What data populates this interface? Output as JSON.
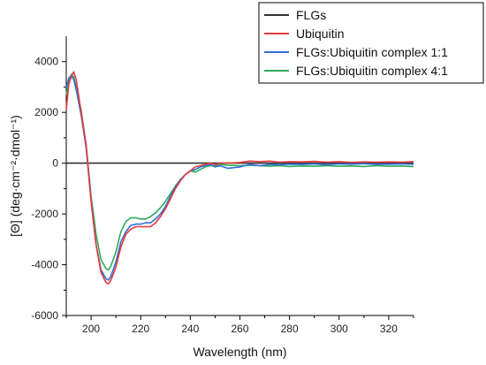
{
  "chart_data": {
    "type": "line",
    "title": "",
    "xlabel": "Wavelength (nm)",
    "ylabel": "[Θ] (deg·cm⁻²·dmol⁻¹)",
    "xlim": [
      190,
      330
    ],
    "ylim": [
      -6000,
      5000
    ],
    "xticks": [
      200,
      220,
      240,
      260,
      280,
      300,
      320
    ],
    "yticks": [
      -6000,
      -4000,
      -2000,
      0,
      2000,
      4000
    ],
    "grid": false,
    "legend_position": "top-right",
    "series": [
      {
        "name": "FLGs",
        "color": "#333333",
        "x": [
          190,
          330
        ],
        "y": [
          0,
          0
        ]
      },
      {
        "name": "Ubiquitin",
        "color": "#e8383d",
        "x": [
          190,
          191,
          192,
          193,
          194,
          196,
          198,
          200,
          202,
          204,
          206,
          207,
          208,
          210,
          212,
          214,
          216,
          218,
          220,
          222,
          224,
          226,
          228,
          230,
          232,
          234,
          236,
          238,
          240,
          242,
          244,
          246,
          248,
          250,
          252,
          255,
          260,
          264,
          268,
          272,
          276,
          280,
          285,
          290,
          295,
          300,
          305,
          310,
          315,
          320,
          325,
          330
        ],
        "y": [
          2100,
          3100,
          3400,
          3600,
          3300,
          2000,
          700,
          -1500,
          -3200,
          -4300,
          -4700,
          -4750,
          -4600,
          -4100,
          -3300,
          -2800,
          -2600,
          -2500,
          -2500,
          -2500,
          -2500,
          -2350,
          -2100,
          -1800,
          -1400,
          -1000,
          -700,
          -450,
          -300,
          -150,
          -100,
          -50,
          0,
          -50,
          0,
          0,
          30,
          80,
          60,
          80,
          40,
          60,
          50,
          70,
          40,
          60,
          30,
          50,
          40,
          50,
          40,
          60
        ]
      },
      {
        "name": "FLGs:Ubiquitin complex 1:1",
        "color": "#2f6fd8",
        "x": [
          190,
          191,
          192,
          193,
          194,
          196,
          198,
          200,
          202,
          204,
          206,
          207,
          208,
          210,
          212,
          214,
          216,
          218,
          220,
          222,
          224,
          226,
          228,
          230,
          232,
          234,
          236,
          238,
          240,
          242,
          244,
          246,
          248,
          250,
          252,
          255,
          260,
          264,
          268,
          272,
          276,
          280,
          285,
          290,
          295,
          300,
          305,
          310,
          315,
          320,
          325,
          330
        ],
        "y": [
          2950,
          3350,
          3450,
          3300,
          2900,
          1900,
          600,
          -1500,
          -3200,
          -4200,
          -4550,
          -4600,
          -4450,
          -3900,
          -3100,
          -2700,
          -2450,
          -2400,
          -2400,
          -2350,
          -2350,
          -2200,
          -2000,
          -1700,
          -1300,
          -950,
          -650,
          -450,
          -300,
          -250,
          -150,
          -100,
          -50,
          -150,
          -100,
          -200,
          -150,
          -50,
          -100,
          -50,
          -60,
          -40,
          -50,
          -30,
          -60,
          -30,
          -40,
          -20,
          -50,
          -40,
          -30,
          -40
        ]
      },
      {
        "name": "FLGs:Ubiquitin complex 4:1",
        "color": "#2eaa5a",
        "x": [
          190,
          191,
          192,
          193,
          194,
          196,
          198,
          200,
          202,
          204,
          206,
          207,
          208,
          210,
          212,
          214,
          216,
          218,
          220,
          222,
          224,
          226,
          228,
          230,
          232,
          234,
          236,
          238,
          240,
          242,
          244,
          246,
          248,
          250,
          252,
          255,
          260,
          264,
          268,
          272,
          276,
          280,
          285,
          290,
          295,
          300,
          305,
          310,
          315,
          320,
          325,
          330
        ],
        "y": [
          2700,
          3200,
          3500,
          3400,
          3000,
          2100,
          700,
          -1300,
          -2800,
          -3800,
          -4150,
          -4200,
          -4050,
          -3500,
          -2700,
          -2300,
          -2150,
          -2150,
          -2200,
          -2200,
          -2100,
          -1950,
          -1750,
          -1500,
          -1200,
          -900,
          -650,
          -450,
          -300,
          -350,
          -250,
          -150,
          -100,
          -100,
          -50,
          -80,
          -100,
          -80,
          -100,
          -120,
          -100,
          -130,
          -110,
          -120,
          -100,
          -120,
          -110,
          -130,
          -100,
          -120,
          -110,
          -130
        ]
      }
    ]
  }
}
